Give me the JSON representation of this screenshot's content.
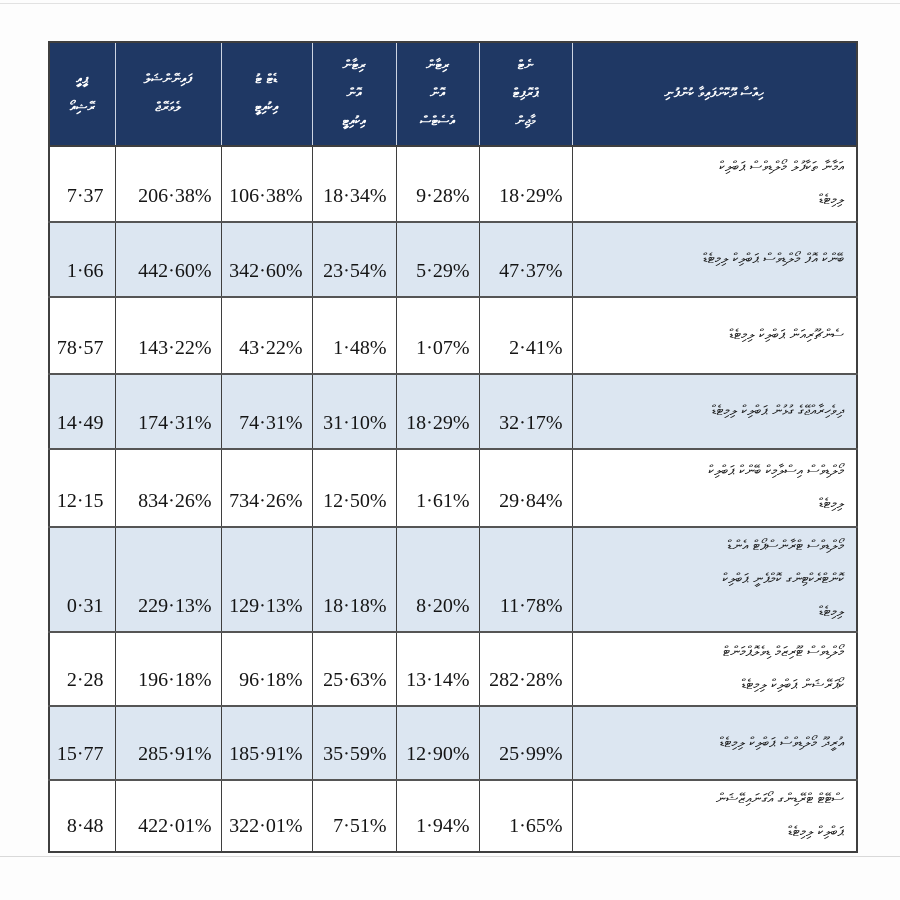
{
  "colors": {
    "header_bg": "#1f3864",
    "header_text": "#ffffff",
    "row_alt_bg": "#dce6f1",
    "row_bg": "#ffffff",
    "body_text": "#151515",
    "grid_line": "#3f3f3f",
    "row_separator": "#555555"
  },
  "table": {
    "columns": [
      {
        "id": "pe-ratio",
        "label_lines": [
          "ޕީއީ",
          "ރޭޝިއޯ"
        ]
      },
      {
        "id": "financial-leverage",
        "label_lines": [
          "ފައިނޭންޝަލް",
          "ލެވަރޭޖް"
        ]
      },
      {
        "id": "debt-to-equity",
        "label_lines": [
          "ޑެޓް ޓު",
          "އިކުއިޓީ"
        ]
      },
      {
        "id": "return-on-equity",
        "label_lines": [
          "ރިޓާން",
          "އޮން",
          "އިކުއިޓީ"
        ]
      },
      {
        "id": "return-on-assets",
        "label_lines": [
          "ރިޓާން",
          "އޮން",
          "އެސެޓްސް"
        ]
      },
      {
        "id": "net-profit-margin",
        "label_lines": [
          "ނެޓް",
          "ޕްރޮފިޓް",
          "މާޖިން"
        ]
      },
      {
        "id": "company",
        "label_lines": [
          "ހިއްސާ ދޫކޮށްފައިވާ ކުންފުނި"
        ]
      }
    ],
    "rows": [
      {
        "values": [
          "7·37",
          "206·38%",
          "106·38%",
          "18·34%",
          "9·28%",
          "18·29%"
        ],
        "company_lines": [
          "އަމާނާ ތަކާފުލް މޯލްޑިވްސް ޕަބްލިކް",
          "ލިމިޓެޑް"
        ]
      },
      {
        "values": [
          "1·66",
          "442·60%",
          "342·60%",
          "23·54%",
          "5·29%",
          "47·37%"
        ],
        "company_lines": [
          "ބޭންކް އޮފް މޯލްޑިވްސް ޕަބްލިކް ލިމިޓެޑް"
        ]
      },
      {
        "values": [
          "78·57",
          "143·22%",
          "43·22%",
          "1·48%",
          "1·07%",
          "2·41%"
        ],
        "company_lines": [
          "ސެންޗޫރިއަން ޕަބްލިކް ލިމިޓެޑް"
        ]
      },
      {
        "values": [
          "14·49",
          "174·31%",
          "74·31%",
          "31·10%",
          "18·29%",
          "32·17%"
        ],
        "company_lines": [
          "ދިވެހިރާއްޖޭގެ ގުޅުން ޕަބްލިކް ލިމިޓެޑް"
        ]
      },
      {
        "values": [
          "12·15",
          "834·26%",
          "734·26%",
          "12·50%",
          "1·61%",
          "29·84%"
        ],
        "company_lines": [
          "މޯލްޑިވްސް އިސްލާމިކް ބޭންކް ޕަބްލިކް",
          "ލިމިޓެޑް"
        ]
      },
      {
        "values": [
          "0·31",
          "229·13%",
          "129·13%",
          "18·18%",
          "8·20%",
          "11·78%"
        ],
        "company_lines": [
          "މޯލްޑިވްސް ޓްރާންސްޕޯޓް އެންޑް",
          "ކޮންޓްރެކްޓިންގ ކޮމްޕެނީ ޕަބްލިކް",
          "ލިމިޓެޑް"
        ]
      },
      {
        "values": [
          "2·28",
          "196·18%",
          "96·18%",
          "25·63%",
          "13·14%",
          "282·28%"
        ],
        "company_lines": [
          "މޯލްޑިވްސް ޓޫރިޒަމް ޑިވެލޮޕްމަންޓް",
          "ކޯޕަރޭޝަން ޕަބްލިކް ލިމިޓެޑް"
        ]
      },
      {
        "values": [
          "15·77",
          "285·91%",
          "185·91%",
          "35·59%",
          "12·90%",
          "25·99%"
        ],
        "company_lines": [
          "އުރީދޫ މޯލްޑިވްސް ޕަބްލިކް ލިމިޓެޑް"
        ]
      },
      {
        "values": [
          "8·48",
          "422·01%",
          "322·01%",
          "7·51%",
          "1·94%",
          "1·65%"
        ],
        "company_lines": [
          "ސްޓޭޓް ޓްރޭޑިންގ އޯގަނައިޒޭޝަން",
          "ޕަބްލިކް ލިމިޓެޑް"
        ]
      }
    ]
  }
}
